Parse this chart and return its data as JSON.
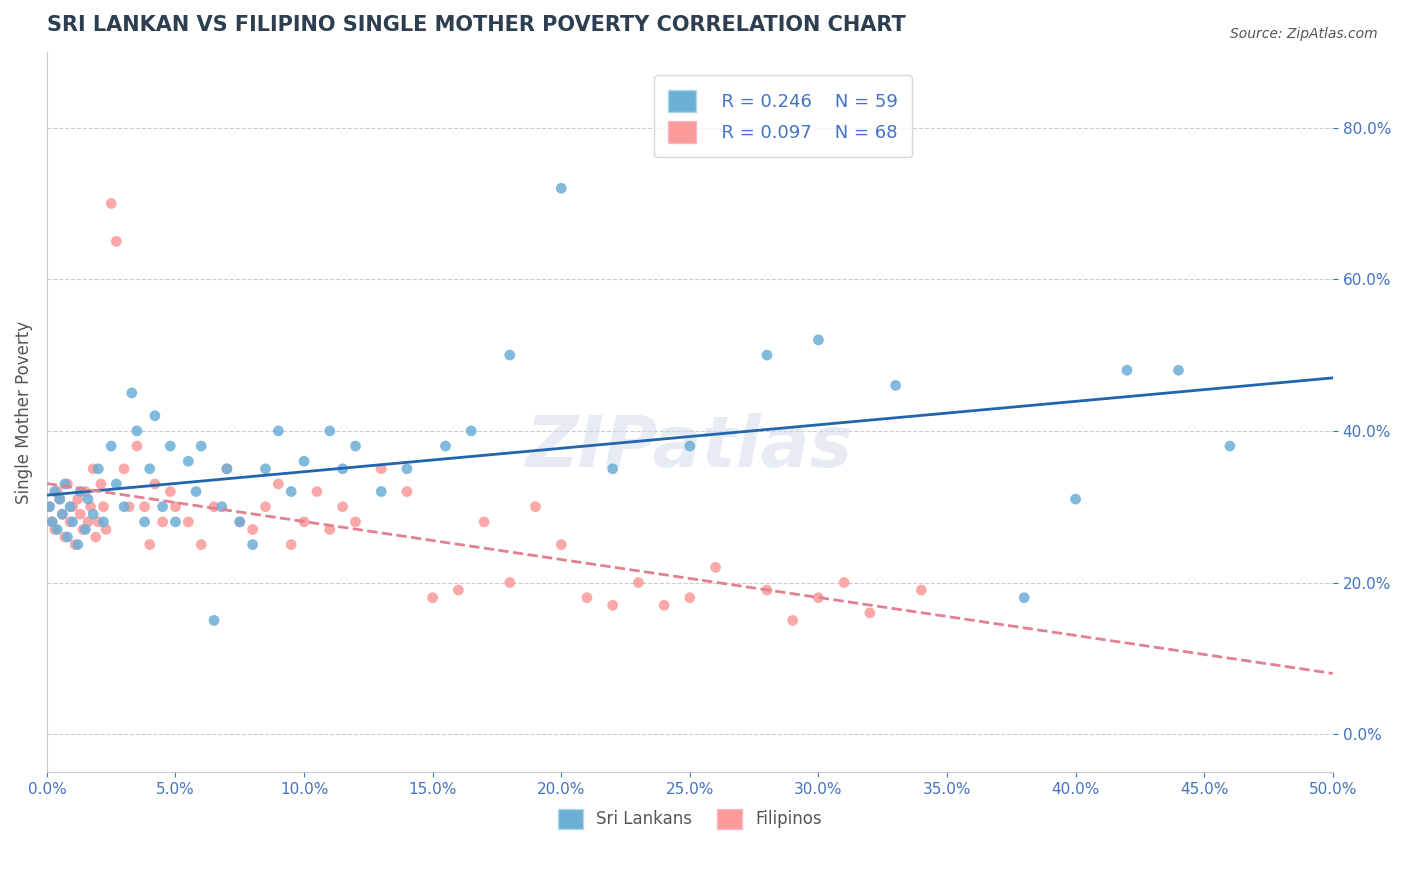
{
  "title": "SRI LANKAN VS FILIPINO SINGLE MOTHER POVERTY CORRELATION CHART",
  "source": "Source: ZipAtlas.com",
  "xlabel": "",
  "ylabel": "Single Mother Poverty",
  "xlim": [
    0.0,
    0.5
  ],
  "ylim": [
    -0.05,
    0.9
  ],
  "yticks": [
    0.0,
    0.2,
    0.4,
    0.6,
    0.8
  ],
  "xticks": [
    0.0,
    0.05,
    0.1,
    0.15,
    0.2,
    0.25,
    0.3,
    0.35,
    0.4,
    0.45,
    0.5
  ],
  "sri_lankan_color": "#6baed6",
  "filipino_color": "#fb9a99",
  "sri_lankan_line_color": "#2166ac",
  "filipino_line_color": "#e08090",
  "watermark": "ZIPatlas",
  "legend_r_sri": "R = 0.246",
  "legend_n_sri": "N = 59",
  "legend_r_fil": "R = 0.097",
  "legend_n_fil": "N = 68",
  "sri_lankans_label": "Sri Lankans",
  "filipinos_label": "Filipinos",
  "sri_lankans_x": [
    0.001,
    0.002,
    0.003,
    0.004,
    0.005,
    0.006,
    0.007,
    0.008,
    0.009,
    0.01,
    0.012,
    0.013,
    0.015,
    0.016,
    0.018,
    0.02,
    0.022,
    0.025,
    0.027,
    0.03,
    0.033,
    0.035,
    0.038,
    0.04,
    0.042,
    0.045,
    0.048,
    0.05,
    0.055,
    0.058,
    0.06,
    0.065,
    0.068,
    0.07,
    0.075,
    0.08,
    0.085,
    0.09,
    0.095,
    0.1,
    0.11,
    0.115,
    0.12,
    0.13,
    0.14,
    0.155,
    0.165,
    0.18,
    0.2,
    0.22,
    0.25,
    0.28,
    0.3,
    0.33,
    0.38,
    0.4,
    0.42,
    0.44,
    0.46
  ],
  "sri_lankans_y": [
    0.3,
    0.28,
    0.32,
    0.27,
    0.31,
    0.29,
    0.33,
    0.26,
    0.3,
    0.28,
    0.25,
    0.32,
    0.27,
    0.31,
    0.29,
    0.35,
    0.28,
    0.38,
    0.33,
    0.3,
    0.45,
    0.4,
    0.28,
    0.35,
    0.42,
    0.3,
    0.38,
    0.28,
    0.36,
    0.32,
    0.38,
    0.15,
    0.3,
    0.35,
    0.28,
    0.25,
    0.35,
    0.4,
    0.32,
    0.36,
    0.4,
    0.35,
    0.38,
    0.32,
    0.35,
    0.38,
    0.4,
    0.5,
    0.72,
    0.35,
    0.38,
    0.5,
    0.52,
    0.46,
    0.18,
    0.31,
    0.48,
    0.48,
    0.38
  ],
  "filipinos_x": [
    0.001,
    0.002,
    0.003,
    0.004,
    0.005,
    0.006,
    0.007,
    0.008,
    0.009,
    0.01,
    0.011,
    0.012,
    0.013,
    0.014,
    0.015,
    0.016,
    0.017,
    0.018,
    0.019,
    0.02,
    0.021,
    0.022,
    0.023,
    0.025,
    0.027,
    0.03,
    0.032,
    0.035,
    0.038,
    0.04,
    0.042,
    0.045,
    0.048,
    0.05,
    0.055,
    0.06,
    0.065,
    0.07,
    0.075,
    0.08,
    0.085,
    0.09,
    0.095,
    0.1,
    0.105,
    0.11,
    0.115,
    0.12,
    0.13,
    0.14,
    0.15,
    0.16,
    0.17,
    0.18,
    0.19,
    0.2,
    0.21,
    0.22,
    0.23,
    0.24,
    0.25,
    0.26,
    0.28,
    0.29,
    0.3,
    0.31,
    0.32,
    0.34
  ],
  "filipinos_y": [
    0.3,
    0.28,
    0.27,
    0.32,
    0.31,
    0.29,
    0.26,
    0.33,
    0.28,
    0.3,
    0.25,
    0.31,
    0.29,
    0.27,
    0.32,
    0.28,
    0.3,
    0.35,
    0.26,
    0.28,
    0.33,
    0.3,
    0.27,
    0.7,
    0.65,
    0.35,
    0.3,
    0.38,
    0.3,
    0.25,
    0.33,
    0.28,
    0.32,
    0.3,
    0.28,
    0.25,
    0.3,
    0.35,
    0.28,
    0.27,
    0.3,
    0.33,
    0.25,
    0.28,
    0.32,
    0.27,
    0.3,
    0.28,
    0.35,
    0.32,
    0.18,
    0.19,
    0.28,
    0.2,
    0.3,
    0.25,
    0.18,
    0.17,
    0.2,
    0.17,
    0.18,
    0.22,
    0.19,
    0.15,
    0.18,
    0.2,
    0.16,
    0.19
  ],
  "background_color": "#ffffff",
  "grid_color": "#cccccc",
  "title_color": "#2c3e50",
  "axis_label_color": "#4472c4",
  "tick_label_color": "#4472c4"
}
